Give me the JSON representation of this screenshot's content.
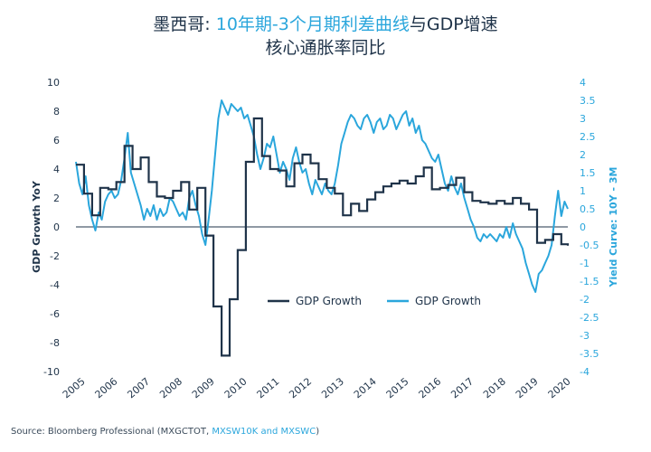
{
  "title": {
    "line1_part1": "墨西哥: ",
    "line1_part2": "10年期-3个月期利差曲线",
    "line1_part3": "与GDP增速",
    "line2": "核心通胀率同比"
  },
  "source": {
    "prefix": "Source: Bloomberg Professional (MXGCTOT, ",
    "highlight": "MXSW10K and MXSWC",
    "suffix": ")"
  },
  "colors": {
    "gdp": "#1f3349",
    "yield": "#2aa6dc"
  },
  "chart_data": {
    "type": "line",
    "ylabel_left": "GDP Growth YoY",
    "ylabel_right": "Yield Curve: 10Y - 3M",
    "ylim_left": [
      -10,
      10
    ],
    "ylim_right": [
      -4,
      4
    ],
    "left_ticks": [
      "10",
      "8",
      "6",
      "4",
      "2",
      "0",
      "-2",
      "-4",
      "-6",
      "-8",
      "-10"
    ],
    "right_ticks": [
      "4",
      "3.5",
      "3",
      "2.5",
      "2",
      "1.5",
      "1",
      "0.5",
      "0",
      "-0.5",
      "-1",
      "-1.5",
      "-2",
      "-2.5",
      "-3",
      "-3.5",
      "-4"
    ],
    "x_ticks": [
      "2005",
      "2006",
      "2007",
      "2008",
      "2009",
      "2010",
      "2011",
      "2012",
      "2013",
      "2014",
      "2015",
      "2016",
      "2017",
      "2018",
      "2019",
      "2020"
    ],
    "legend": [
      "GDP Growth",
      "GDP Growth"
    ],
    "series": [
      {
        "name": "GDP Growth",
        "axis": "left",
        "step": true,
        "points": [
          [
            2005.0,
            4.3
          ],
          [
            2005.25,
            2.3
          ],
          [
            2005.5,
            0.8
          ],
          [
            2005.75,
            2.7
          ],
          [
            2006.0,
            2.6
          ],
          [
            2006.25,
            3.1
          ],
          [
            2006.5,
            5.6
          ],
          [
            2006.75,
            4.0
          ],
          [
            2007.0,
            4.8
          ],
          [
            2007.25,
            3.1
          ],
          [
            2007.5,
            2.1
          ],
          [
            2007.75,
            2.0
          ],
          [
            2008.0,
            2.5
          ],
          [
            2008.25,
            3.1
          ],
          [
            2008.5,
            1.2
          ],
          [
            2008.75,
            2.7
          ],
          [
            2009.0,
            -0.6
          ],
          [
            2009.25,
            -5.5
          ],
          [
            2009.5,
            -8.9
          ],
          [
            2009.75,
            -5.0
          ],
          [
            2010.0,
            -1.6
          ],
          [
            2010.25,
            4.5
          ],
          [
            2010.5,
            7.5
          ],
          [
            2010.75,
            4.9
          ],
          [
            2011.0,
            4.0
          ],
          [
            2011.25,
            3.9
          ],
          [
            2011.5,
            2.8
          ],
          [
            2011.75,
            4.4
          ],
          [
            2012.0,
            5.0
          ],
          [
            2012.25,
            4.4
          ],
          [
            2012.5,
            3.3
          ],
          [
            2012.75,
            2.7
          ],
          [
            2013.0,
            2.3
          ],
          [
            2013.25,
            0.8
          ],
          [
            2013.5,
            1.6
          ],
          [
            2013.75,
            1.1
          ],
          [
            2014.0,
            1.9
          ],
          [
            2014.25,
            2.4
          ],
          [
            2014.5,
            2.8
          ],
          [
            2014.75,
            3.0
          ],
          [
            2015.0,
            3.2
          ],
          [
            2015.25,
            3.0
          ],
          [
            2015.5,
            3.5
          ],
          [
            2015.75,
            4.1
          ],
          [
            2016.0,
            2.6
          ],
          [
            2016.25,
            2.7
          ],
          [
            2016.5,
            2.9
          ],
          [
            2016.75,
            3.4
          ],
          [
            2017.0,
            2.4
          ],
          [
            2017.25,
            1.8
          ],
          [
            2017.5,
            1.7
          ],
          [
            2017.75,
            1.6
          ],
          [
            2018.0,
            1.8
          ],
          [
            2018.25,
            1.6
          ],
          [
            2018.5,
            2.0
          ],
          [
            2018.75,
            1.6
          ],
          [
            2019.0,
            1.2
          ],
          [
            2019.25,
            -1.1
          ],
          [
            2019.5,
            -0.9
          ],
          [
            2019.75,
            -0.5
          ],
          [
            2020.0,
            -1.2
          ],
          [
            2020.2,
            -1.3
          ]
        ]
      },
      {
        "name": "GDP Growth",
        "axis": "right",
        "step": false,
        "points": [
          [
            2005.0,
            1.8
          ],
          [
            2005.1,
            1.2
          ],
          [
            2005.2,
            0.9
          ],
          [
            2005.3,
            1.4
          ],
          [
            2005.4,
            0.6
          ],
          [
            2005.5,
            0.2
          ],
          [
            2005.6,
            -0.1
          ],
          [
            2005.7,
            0.4
          ],
          [
            2005.8,
            0.2
          ],
          [
            2005.9,
            0.7
          ],
          [
            2006.0,
            0.9
          ],
          [
            2006.1,
            1.0
          ],
          [
            2006.2,
            0.8
          ],
          [
            2006.3,
            0.9
          ],
          [
            2006.4,
            1.3
          ],
          [
            2006.5,
            1.9
          ],
          [
            2006.6,
            2.6
          ],
          [
            2006.7,
            1.5
          ],
          [
            2006.8,
            1.2
          ],
          [
            2006.9,
            0.9
          ],
          [
            2007.0,
            0.6
          ],
          [
            2007.1,
            0.2
          ],
          [
            2007.2,
            0.5
          ],
          [
            2007.3,
            0.3
          ],
          [
            2007.4,
            0.6
          ],
          [
            2007.5,
            0.2
          ],
          [
            2007.6,
            0.5
          ],
          [
            2007.7,
            0.3
          ],
          [
            2007.8,
            0.4
          ],
          [
            2007.9,
            0.8
          ],
          [
            2008.0,
            0.7
          ],
          [
            2008.1,
            0.5
          ],
          [
            2008.2,
            0.3
          ],
          [
            2008.3,
            0.4
          ],
          [
            2008.4,
            0.2
          ],
          [
            2008.5,
            0.8
          ],
          [
            2008.6,
            1.0
          ],
          [
            2008.7,
            0.6
          ],
          [
            2008.8,
            0.3
          ],
          [
            2008.9,
            -0.2
          ],
          [
            2009.0,
            -0.5
          ],
          [
            2009.1,
            0.2
          ],
          [
            2009.2,
            1.0
          ],
          [
            2009.3,
            2.0
          ],
          [
            2009.4,
            3.0
          ],
          [
            2009.5,
            3.5
          ],
          [
            2009.6,
            3.3
          ],
          [
            2009.7,
            3.1
          ],
          [
            2009.8,
            3.4
          ],
          [
            2009.9,
            3.3
          ],
          [
            2010.0,
            3.2
          ],
          [
            2010.1,
            3.3
          ],
          [
            2010.2,
            3.0
          ],
          [
            2010.3,
            3.1
          ],
          [
            2010.4,
            2.8
          ],
          [
            2010.5,
            2.5
          ],
          [
            2010.6,
            2.0
          ],
          [
            2010.7,
            1.6
          ],
          [
            2010.8,
            1.9
          ],
          [
            2010.9,
            2.3
          ],
          [
            2011.0,
            2.2
          ],
          [
            2011.1,
            2.5
          ],
          [
            2011.2,
            2.0
          ],
          [
            2011.3,
            1.5
          ],
          [
            2011.4,
            1.8
          ],
          [
            2011.5,
            1.6
          ],
          [
            2011.6,
            1.3
          ],
          [
            2011.7,
            1.9
          ],
          [
            2011.8,
            2.2
          ],
          [
            2011.9,
            1.8
          ],
          [
            2012.0,
            1.5
          ],
          [
            2012.1,
            1.6
          ],
          [
            2012.2,
            1.2
          ],
          [
            2012.3,
            0.9
          ],
          [
            2012.4,
            1.3
          ],
          [
            2012.5,
            1.1
          ],
          [
            2012.6,
            0.9
          ],
          [
            2012.7,
            1.2
          ],
          [
            2012.8,
            1.0
          ],
          [
            2012.9,
            0.9
          ],
          [
            2013.0,
            1.2
          ],
          [
            2013.1,
            1.7
          ],
          [
            2013.2,
            2.3
          ],
          [
            2013.3,
            2.6
          ],
          [
            2013.4,
            2.9
          ],
          [
            2013.5,
            3.1
          ],
          [
            2013.6,
            3.0
          ],
          [
            2013.7,
            2.8
          ],
          [
            2013.8,
            2.7
          ],
          [
            2013.9,
            3.0
          ],
          [
            2014.0,
            3.1
          ],
          [
            2014.1,
            2.9
          ],
          [
            2014.2,
            2.6
          ],
          [
            2014.3,
            2.9
          ],
          [
            2014.4,
            3.0
          ],
          [
            2014.5,
            2.7
          ],
          [
            2014.6,
            2.8
          ],
          [
            2014.7,
            3.1
          ],
          [
            2014.8,
            3.0
          ],
          [
            2014.9,
            2.7
          ],
          [
            2015.0,
            2.9
          ],
          [
            2015.1,
            3.1
          ],
          [
            2015.2,
            3.2
          ],
          [
            2015.3,
            2.8
          ],
          [
            2015.4,
            3.0
          ],
          [
            2015.5,
            2.6
          ],
          [
            2015.6,
            2.8
          ],
          [
            2015.7,
            2.4
          ],
          [
            2015.8,
            2.3
          ],
          [
            2015.9,
            2.1
          ],
          [
            2016.0,
            1.9
          ],
          [
            2016.1,
            1.8
          ],
          [
            2016.2,
            2.0
          ],
          [
            2016.3,
            1.6
          ],
          [
            2016.4,
            1.2
          ],
          [
            2016.5,
            1.0
          ],
          [
            2016.6,
            1.4
          ],
          [
            2016.7,
            1.1
          ],
          [
            2016.8,
            0.9
          ],
          [
            2016.9,
            1.2
          ],
          [
            2017.0,
            0.8
          ],
          [
            2017.1,
            0.5
          ],
          [
            2017.2,
            0.2
          ],
          [
            2017.3,
            0.0
          ],
          [
            2017.4,
            -0.3
          ],
          [
            2017.5,
            -0.4
          ],
          [
            2017.6,
            -0.2
          ],
          [
            2017.7,
            -0.3
          ],
          [
            2017.8,
            -0.2
          ],
          [
            2017.9,
            -0.3
          ],
          [
            2018.0,
            -0.4
          ],
          [
            2018.1,
            -0.2
          ],
          [
            2018.2,
            -0.3
          ],
          [
            2018.3,
            0.0
          ],
          [
            2018.4,
            -0.3
          ],
          [
            2018.5,
            0.1
          ],
          [
            2018.6,
            -0.2
          ],
          [
            2018.7,
            -0.4
          ],
          [
            2018.8,
            -0.6
          ],
          [
            2018.9,
            -1.0
          ],
          [
            2019.0,
            -1.3
          ],
          [
            2019.1,
            -1.6
          ],
          [
            2019.2,
            -1.8
          ],
          [
            2019.3,
            -1.3
          ],
          [
            2019.4,
            -1.2
          ],
          [
            2019.5,
            -1.0
          ],
          [
            2019.6,
            -0.8
          ],
          [
            2019.7,
            -0.5
          ],
          [
            2019.8,
            0.3
          ],
          [
            2019.9,
            1.0
          ],
          [
            2020.0,
            0.3
          ],
          [
            2020.1,
            0.7
          ],
          [
            2020.2,
            0.5
          ]
        ]
      }
    ]
  }
}
